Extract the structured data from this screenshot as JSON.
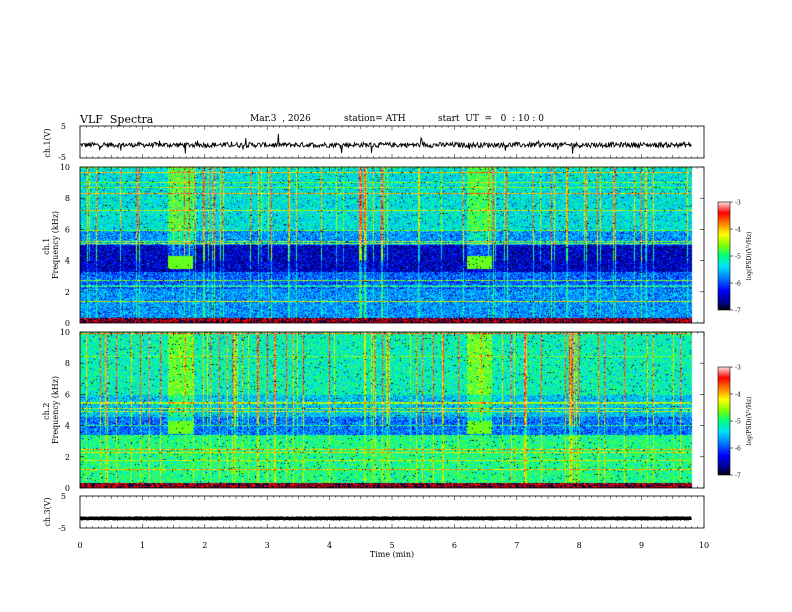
{
  "header": {
    "title": "VLF  Spectra",
    "date": "Mar.3  , 2026",
    "station": "station= ATH",
    "start": "start  UT  =   0  : 10 : 0"
  },
  "colors": {
    "cmap": [
      "#000000",
      "#000080",
      "#0000ff",
      "#0080ff",
      "#00e0ff",
      "#00ff80",
      "#80ff00",
      "#ffff00",
      "#ff8000",
      "#ff0000",
      "#ffd0d0"
    ]
  },
  "chart_data": [
    {
      "type": "line",
      "ylabel": "ch.1(V)",
      "yticks": [
        "5",
        "-5"
      ],
      "ylim": [
        -5,
        5
      ],
      "xlim": [
        0,
        10
      ],
      "data_end_min": 9.8,
      "trace_level": -0.9,
      "trace_noise_amplitude": 0.8
    },
    {
      "type": "heatmap",
      "ylabel": "ch.1\nFrequency (kHz)",
      "yticks": [
        "0",
        "2",
        "4",
        "6",
        "8",
        "10"
      ],
      "ylim": [
        0,
        10
      ],
      "xlim": [
        0,
        10
      ],
      "colorbar_label": "log(PSD)(V²/Hz)",
      "colorbar_ticks": [
        "-3",
        "-4",
        "-5",
        "-6",
        "-7"
      ],
      "colorbar_range": [
        -7,
        -3
      ],
      "bursts_min": [
        [
          1.4,
          1.8
        ],
        [
          6.2,
          6.6
        ]
      ],
      "burst_band_khz": [
        3.5,
        4.3
      ]
    },
    {
      "type": "heatmap",
      "ylabel": "ch.2\nFrequency (kHz)",
      "yticks": [
        "0",
        "2",
        "4",
        "6",
        "8",
        "10"
      ],
      "ylim": [
        0,
        10
      ],
      "xlim": [
        0,
        10
      ],
      "colorbar_label": "log(PSD)(V²/Hz)",
      "colorbar_ticks": [
        "-3",
        "-4",
        "-5",
        "-6",
        "-7"
      ],
      "colorbar_range": [
        -7,
        -3
      ],
      "bursts_min": [
        [
          1.4,
          1.8
        ],
        [
          6.2,
          6.6
        ]
      ],
      "burst_band_khz": [
        3.5,
        4.3
      ]
    },
    {
      "type": "line",
      "ylabel": "ch.3(V)",
      "yticks": [
        "5",
        "-5"
      ],
      "ylim": [
        -5,
        5
      ],
      "xlim": [
        0,
        10
      ],
      "data_end_min": 9.8,
      "trace_level": -2.0,
      "trace_noise_amplitude": 0.1
    }
  ],
  "xaxis": {
    "label": "Time  (min)",
    "ticks": [
      "0",
      "1",
      "2",
      "3",
      "4",
      "5",
      "6",
      "7",
      "8",
      "9",
      "10"
    ]
  }
}
